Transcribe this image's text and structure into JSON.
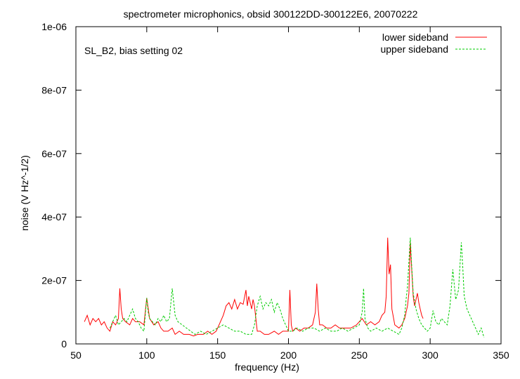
{
  "chart_data": {
    "type": "line",
    "title": "spectrometer microphonics, obsid 300122DD-300122E6, 20070222",
    "annotation": "SL_B2, bias setting 02",
    "xlabel": "frequency (Hz)",
    "ylabel": "noise (V Hz^-1/2)",
    "xlim": [
      50,
      350
    ],
    "ylim": [
      0,
      1e-06
    ],
    "xticks": [
      50,
      100,
      150,
      200,
      250,
      300,
      350
    ],
    "xtick_labels": [
      "50",
      "100",
      "150",
      "200",
      "250",
      "300",
      "350"
    ],
    "yticks": [
      0,
      2e-07,
      4e-07,
      6e-07,
      8e-07,
      1e-06
    ],
    "ytick_labels": [
      "0",
      "2e-07",
      "4e-07",
      "6e-07",
      "8e-07",
      "1e-06"
    ],
    "grid": false,
    "legend_position": "top-right",
    "series": [
      {
        "name": "lower sideband",
        "color": "#ff0000",
        "dash": "solid",
        "x": [
          56,
          58,
          60,
          62,
          64,
          66,
          68,
          70,
          72,
          74,
          76,
          78,
          80,
          81,
          82,
          83,
          85,
          88,
          90,
          92,
          95,
          98,
          100,
          102,
          105,
          108,
          110,
          112,
          115,
          118,
          120,
          123,
          126,
          130,
          133,
          136,
          140,
          143,
          146,
          149,
          150,
          152,
          154,
          156,
          158,
          160,
          162,
          164,
          166,
          168,
          170,
          171,
          172,
          174,
          175,
          176,
          178,
          180,
          183,
          186,
          190,
          193,
          196,
          200,
          201,
          202,
          203,
          205,
          208,
          211,
          214,
          217,
          219,
          220,
          221,
          222,
          224,
          227,
          230,
          233,
          236,
          240,
          244,
          248,
          252,
          255,
          258,
          261,
          264,
          266,
          268,
          269,
          270,
          271,
          272,
          273,
          275,
          278,
          280,
          282,
          284,
          285,
          286,
          287,
          288,
          289,
          290,
          291,
          292,
          293,
          294,
          295
        ],
        "y": [
          7e-08,
          9e-08,
          6e-08,
          8e-08,
          7e-08,
          8e-08,
          6e-08,
          7e-08,
          5e-08,
          4e-08,
          7e-08,
          6e-08,
          8e-08,
          1.75e-07,
          1.1e-07,
          8e-08,
          7e-08,
          6e-08,
          8e-08,
          7e-08,
          7e-08,
          6e-08,
          1.45e-07,
          8e-08,
          6e-08,
          7e-08,
          5e-08,
          4e-08,
          4e-08,
          5e-08,
          3e-08,
          4e-08,
          3e-08,
          3e-08,
          2.5e-08,
          3e-08,
          3e-08,
          4e-08,
          3e-08,
          4e-08,
          5e-08,
          7e-08,
          9e-08,
          1.2e-07,
          1.3e-07,
          1.1e-07,
          1.4e-07,
          1.1e-07,
          1.3e-07,
          1.25e-07,
          1.7e-07,
          1.2e-07,
          1.5e-07,
          1.1e-07,
          1.4e-07,
          1.2e-07,
          4e-08,
          4e-08,
          3e-08,
          3e-08,
          4e-08,
          3e-08,
          4e-08,
          4e-08,
          1.7e-07,
          6e-08,
          4e-08,
          5e-08,
          4e-08,
          5e-08,
          5e-08,
          6e-08,
          1e-07,
          1.9e-07,
          1.1e-07,
          6e-08,
          6e-08,
          5e-08,
          5e-08,
          6e-08,
          5e-08,
          5e-08,
          5e-08,
          6e-08,
          8e-08,
          6e-08,
          7e-08,
          6e-08,
          7e-08,
          9e-08,
          1e-07,
          1.5e-07,
          3.35e-07,
          2.2e-07,
          2.5e-07,
          1.1e-07,
          6e-08,
          5e-08,
          6e-08,
          8e-08,
          1.2e-07,
          1.6e-07,
          3.2e-07,
          2.3e-07,
          1.5e-07,
          1.2e-07,
          1.4e-07,
          1.6e-07,
          1.3e-07,
          1.1e-07,
          9e-08,
          8e-08
        ]
      },
      {
        "name": "upper sideband",
        "color": "#00cc00",
        "dash": "dashed",
        "x": [
          74,
          76,
          78,
          80,
          82,
          84,
          86,
          88,
          90,
          92,
          94,
          96,
          98,
          100,
          101,
          102,
          104,
          106,
          108,
          110,
          112,
          114,
          116,
          118,
          120,
          122,
          125,
          128,
          131,
          134,
          138,
          142,
          146,
          150,
          154,
          158,
          162,
          166,
          170,
          174,
          176,
          178,
          180,
          182,
          184,
          186,
          188,
          190,
          192,
          194,
          196,
          198,
          200,
          203,
          206,
          210,
          214,
          218,
          222,
          226,
          230,
          234,
          238,
          242,
          246,
          250,
          252,
          253,
          254,
          256,
          258,
          262,
          266,
          270,
          274,
          278,
          280,
          282,
          283,
          284,
          285,
          286,
          287,
          288,
          290,
          292,
          294,
          296,
          298,
          300,
          302,
          304,
          306,
          308,
          310,
          312,
          314,
          316,
          318,
          320,
          322,
          323,
          324,
          326,
          328,
          330,
          332,
          334,
          336,
          338
        ],
        "y": [
          5e-08,
          7e-08,
          9e-08,
          6e-08,
          7e-08,
          8e-08,
          7e-08,
          9e-08,
          1.1e-07,
          8e-08,
          7e-08,
          5e-08,
          4e-08,
          1.45e-07,
          1e-07,
          8e-08,
          7e-08,
          6e-08,
          8e-08,
          7e-08,
          9e-08,
          7e-08,
          8e-08,
          1.75e-07,
          9e-08,
          7e-08,
          6e-08,
          5e-08,
          4e-08,
          3e-08,
          4e-08,
          3e-08,
          4e-08,
          5e-08,
          6e-08,
          5e-08,
          4e-08,
          4e-08,
          3e-08,
          3e-08,
          6e-08,
          1.2e-07,
          1.5e-07,
          1.1e-07,
          1.3e-07,
          1.2e-07,
          1.4e-07,
          1e-07,
          1.3e-07,
          1.1e-07,
          8e-08,
          6e-08,
          4e-08,
          4e-08,
          5e-08,
          4e-08,
          5e-08,
          5e-08,
          4e-08,
          5e-08,
          4e-08,
          4e-08,
          5e-08,
          4e-08,
          5e-08,
          6e-08,
          1e-07,
          1.75e-07,
          8e-08,
          5e-08,
          4e-08,
          5e-08,
          4e-08,
          5e-08,
          4e-08,
          3e-08,
          5e-08,
          9e-08,
          1.4e-07,
          1.8e-07,
          2.6e-07,
          3.35e-07,
          2.4e-07,
          1.6e-07,
          1.1e-07,
          8e-08,
          6e-08,
          5e-08,
          4e-08,
          5e-08,
          1.05e-07,
          7e-08,
          6e-08,
          8e-08,
          7e-08,
          6e-08,
          1.2e-07,
          2.35e-07,
          1.4e-07,
          1.7e-07,
          3.2e-07,
          2.4e-07,
          1.5e-07,
          1.1e-07,
          9e-08,
          7e-08,
          5e-08,
          3e-08,
          5e-08,
          2e-08
        ]
      }
    ]
  }
}
